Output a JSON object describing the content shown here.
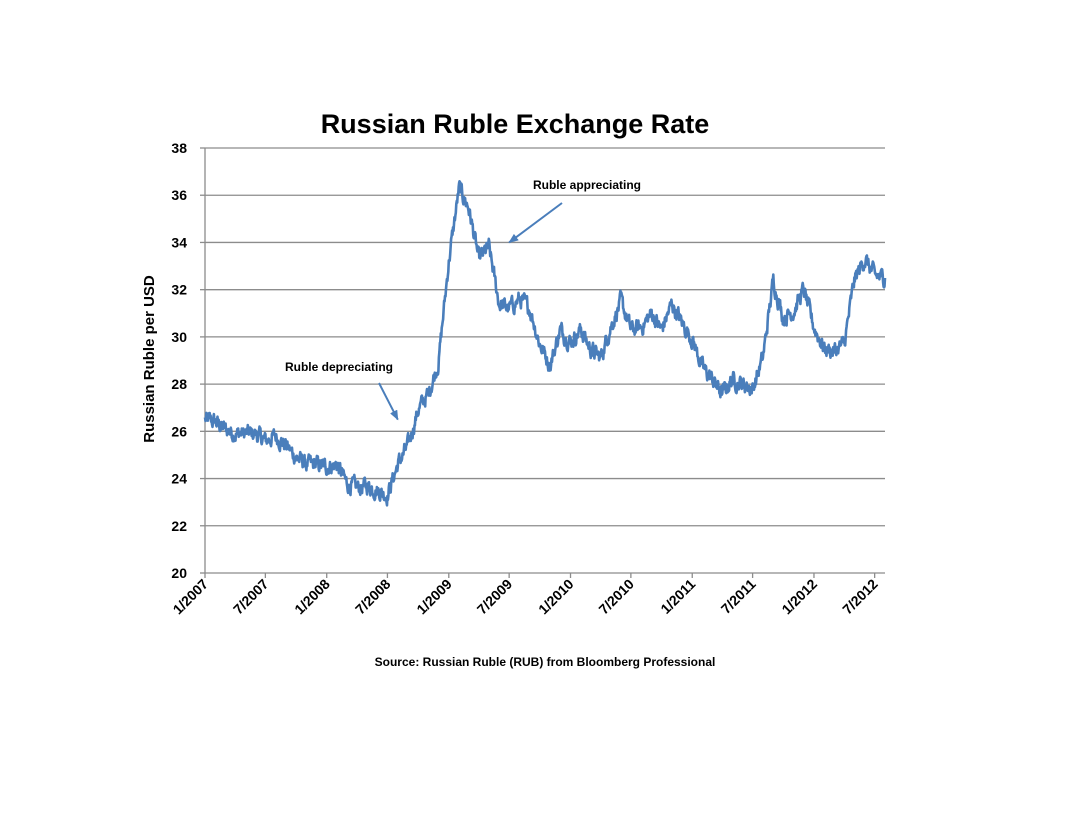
{
  "chart_data": {
    "type": "line",
    "title": "Russian Ruble Exchange Rate",
    "ylabel": "Russian Ruble per USD",
    "xlabel": "",
    "source": "Source: Russian Ruble (RUB) from Bloomberg Professional",
    "ylim": [
      20,
      38
    ],
    "yticks": [
      20,
      22,
      24,
      26,
      28,
      30,
      32,
      34,
      36,
      38
    ],
    "grid": true,
    "legend": "none",
    "color": "#4a7ebb",
    "xtick_labels": [
      "1/2007",
      "7/2007",
      "1/2008",
      "7/2008",
      "1/2009",
      "7/2009",
      "1/2010",
      "7/2010",
      "1/2011",
      "7/2011",
      "1/2012",
      "7/2012"
    ],
    "annotations": [
      {
        "text": "Ruble depreciating",
        "x": "2008-08",
        "y": 26.5
      },
      {
        "text": "Ruble appreciating",
        "x": "2009-07",
        "y": 34.0
      }
    ],
    "series": [
      {
        "x": [
          "2007-01",
          "2007-02",
          "2007-03",
          "2007-04",
          "2007-05",
          "2007-06",
          "2007-07",
          "2007-08",
          "2007-09",
          "2007-10",
          "2007-11",
          "2007-12",
          "2008-01",
          "2008-02",
          "2008-03",
          "2008-04",
          "2008-05",
          "2008-06",
          "2008-07",
          "2008-08",
          "2008-09",
          "2008-10",
          "2008-11",
          "2008-12",
          "2009-01",
          "2009-02",
          "2009-03",
          "2009-04",
          "2009-05",
          "2009-06",
          "2009-07",
          "2009-08",
          "2009-09",
          "2009-10",
          "2009-11",
          "2009-12",
          "2010-01",
          "2010-02",
          "2010-03",
          "2010-04",
          "2010-05",
          "2010-06",
          "2010-07",
          "2010-08",
          "2010-09",
          "2010-10",
          "2010-11",
          "2010-12",
          "2011-01",
          "2011-02",
          "2011-03",
          "2011-04",
          "2011-05",
          "2011-06",
          "2011-07",
          "2011-08",
          "2011-09",
          "2011-10",
          "2011-11",
          "2011-12",
          "2012-01",
          "2012-02",
          "2012-03",
          "2012-04",
          "2012-05",
          "2012-06",
          "2012-07",
          "2012-08"
        ],
        "values": [
          26.5,
          26.4,
          26.1,
          25.9,
          25.9,
          25.9,
          25.6,
          25.8,
          25.4,
          24.9,
          24.6,
          24.6,
          24.5,
          24.6,
          23.8,
          23.6,
          23.7,
          23.5,
          23.3,
          24.6,
          25.4,
          26.9,
          27.6,
          28.9,
          33.2,
          36.3,
          35.5,
          33.3,
          33.8,
          31.4,
          31.2,
          31.6,
          31.2,
          29.7,
          28.8,
          30.3,
          29.8,
          30.3,
          29.5,
          29.1,
          30.4,
          31.5,
          30.3,
          30.4,
          31.0,
          30.3,
          31.4,
          30.6,
          29.9,
          28.7,
          28.2,
          27.6,
          28.2,
          28.0,
          27.8,
          29.1,
          32.4,
          30.8,
          31.1,
          32.0,
          30.4,
          29.5,
          29.4,
          29.7,
          32.4,
          33.3,
          32.6,
          32.5
        ]
      }
    ]
  }
}
